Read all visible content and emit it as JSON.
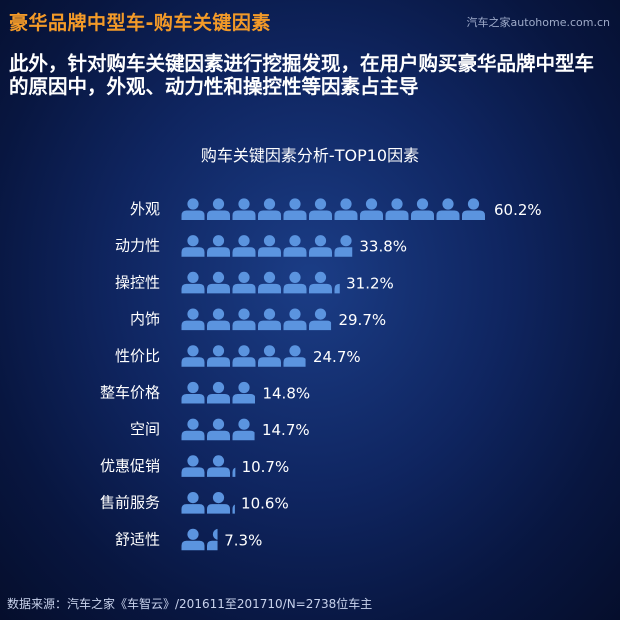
{
  "header": {
    "title": "豪华品牌中型车-购车关键因素",
    "watermark": "汽车之家autohome.com.cn"
  },
  "subheading": "此外，针对购车关键因素进行挖掘发现，在用户购买豪华品牌中型车的原因中，外观、动力性和操控性等因素占主导",
  "chart_data": {
    "type": "bar",
    "title": "购车关键因素分析-TOP10因素",
    "categories": [
      "外观",
      "动力性",
      "操控性",
      "内饰",
      "性价比",
      "整车价格",
      "空间",
      "优惠促销",
      "售前服务",
      "舒适性"
    ],
    "values": [
      60.2,
      33.8,
      31.2,
      29.7,
      24.7,
      14.8,
      14.7,
      10.7,
      10.6,
      7.3
    ],
    "value_labels": [
      "60.2%",
      "33.8%",
      "31.2%",
      "29.7%",
      "24.7%",
      "14.8%",
      "14.7%",
      "10.7%",
      "10.6%",
      "7.3%"
    ],
    "unit": "%",
    "orientation": "horizontal",
    "mark": "person-icon pictogram",
    "xlim": [
      0,
      61
    ]
  },
  "colors": {
    "headline": "#f39a28",
    "icon": "#5b94df",
    "text": "#ffffff"
  },
  "footer": {
    "source": "数据来源：汽车之家《车智云》/201611至201710/N=2738位车主"
  }
}
